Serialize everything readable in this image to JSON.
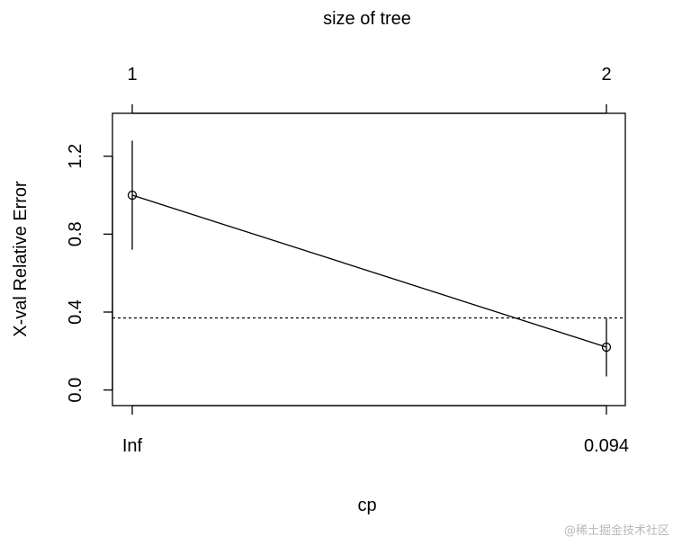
{
  "chart_data": {
    "type": "line",
    "title": "size of tree",
    "xlabel": "cp",
    "ylabel": "X-val Relative Error",
    "x_tick_labels": [
      "Inf",
      "0.094"
    ],
    "top_tick_labels": [
      "1",
      "2"
    ],
    "y_ticks": [
      0.0,
      0.4,
      0.8,
      1.2
    ],
    "y_tick_labels": [
      "0.0",
      "0.4",
      "0.8",
      "1.2"
    ],
    "ylim": [
      -0.08,
      1.42
    ],
    "points": [
      {
        "size": 1,
        "cp": "Inf",
        "xerror": 1.0,
        "xstd_low": 0.72,
        "xstd_high": 1.28
      },
      {
        "size": 2,
        "cp": "0.094",
        "xerror": 0.22,
        "xstd_low": 0.07,
        "xstd_high": 0.37
      }
    ],
    "reference_line": {
      "y": 0.37,
      "style": "dotted"
    },
    "grid": false,
    "legend": "none"
  },
  "watermark": {
    "text": "@稀土掘金技术社区"
  }
}
